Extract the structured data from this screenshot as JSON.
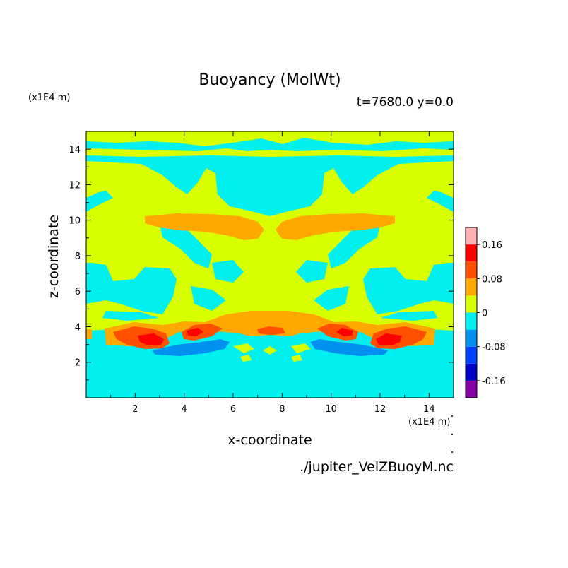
{
  "chart_data": {
    "type": "heatmap",
    "title": "Buoyancy (MolWt)",
    "subtitle": "t=7680.0 y=0.0",
    "xlabel": "x-coordinate",
    "ylabel": "z-coordinate",
    "x_unit": "(x1E4 m)",
    "y_unit": "(x1E4 m)",
    "source": "./jupiter_VelZBuoyM.nc",
    "xlim": [
      0,
      15
    ],
    "ylim": [
      0,
      15
    ],
    "x_ticks": [
      2,
      4,
      6,
      8,
      10,
      12,
      14
    ],
    "y_ticks": [
      2,
      4,
      6,
      8,
      10,
      12,
      14
    ],
    "colorbar": {
      "levels": [
        -0.2,
        -0.16,
        -0.12,
        -0.08,
        -0.04,
        0,
        0.04,
        0.08,
        0.12,
        0.16,
        0.2
      ],
      "colors": [
        "#8a00a8",
        "#0000c8",
        "#0040ff",
        "#0090f0",
        "#00f0f0",
        "#d8ff00",
        "#ffa800",
        "#ff5000",
        "#ff0000",
        "#ffb0b0"
      ],
      "tick_labels": [
        "0.16",
        "0.08",
        "0",
        "-0.08",
        "-0.16"
      ],
      "tick_values": [
        0.16,
        0.08,
        0,
        -0.08,
        -0.16
      ]
    },
    "regions": [
      {
        "level": "0.00 to 0.04",
        "color": "#d8ff00",
        "desc": "background band z 13.9-15; mirrored plumes rising from z 3.5 to 12.5; central column"
      },
      {
        "level": "-0.04 to 0.00",
        "color": "#00f0f0",
        "desc": "lower layer z 0-3 and upper areas between plumes"
      },
      {
        "level": "0.04 to 0.08",
        "color": "#ffa800",
        "desc": "layer near z 9.3 and z 4.0"
      },
      {
        "level": "0.08 to 0.12",
        "color": "#ff5000",
        "desc": "cores near z 3.2 at x 3, 4.5, 7.5, 10.8, 12.5"
      },
      {
        "level": "0.12 to 0.16",
        "color": "#ff0000",
        "desc": "inner cores near z 3.1"
      },
      {
        "level": "-0.08 to -0.04",
        "color": "#0090f0",
        "desc": "lenses below z 3 at x 3-7 and 9-12.5"
      }
    ]
  }
}
